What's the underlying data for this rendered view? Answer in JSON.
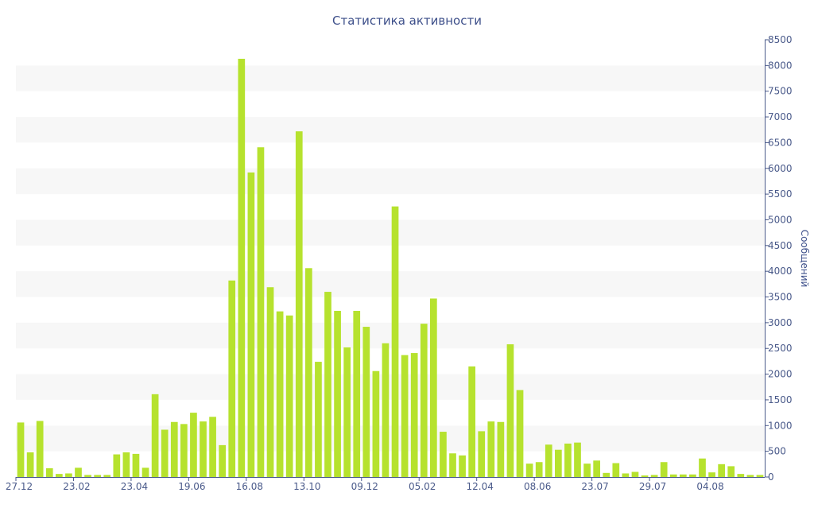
{
  "chart_data": {
    "type": "bar",
    "title": "Статистика активности",
    "xlabel": "",
    "ylabel": "Сообщений",
    "ylim": [
      0,
      8500
    ],
    "y_ticks": [
      0,
      500,
      1000,
      1500,
      2000,
      2500,
      3000,
      3500,
      4000,
      4500,
      5000,
      5500,
      6000,
      6500,
      7000,
      7500,
      8000,
      8500
    ],
    "y_axis_side": "right",
    "grid": "alternating horizontal bands",
    "legend": "none",
    "x_tick_labels": [
      {
        "index": 0,
        "label": "27.12"
      },
      {
        "index": 6,
        "label": "23.02"
      },
      {
        "index": 12,
        "label": "23.04"
      },
      {
        "index": 18,
        "label": "19.06"
      },
      {
        "index": 24,
        "label": "16.08"
      },
      {
        "index": 30,
        "label": "13.10"
      },
      {
        "index": 36,
        "label": "09.12"
      },
      {
        "index": 42,
        "label": "05.02"
      },
      {
        "index": 48,
        "label": "12.04"
      },
      {
        "index": 54,
        "label": "08.06"
      },
      {
        "index": 60,
        "label": "23.07"
      },
      {
        "index": 66,
        "label": "29.07"
      },
      {
        "index": 72,
        "label": "04.08"
      }
    ],
    "values": [
      1060,
      480,
      1090,
      170,
      60,
      70,
      180,
      40,
      40,
      40,
      440,
      480,
      450,
      180,
      1610,
      920,
      1070,
      1030,
      1250,
      1080,
      1170,
      620,
      3820,
      8130,
      5920,
      6410,
      3690,
      3220,
      3140,
      6720,
      4060,
      2240,
      3600,
      3230,
      2520,
      3230,
      2920,
      2060,
      2600,
      5260,
      2370,
      2410,
      2980,
      3470,
      880,
      460,
      420,
      2150,
      890,
      1080,
      1070,
      2580,
      1690,
      260,
      290,
      630,
      530,
      650,
      670,
      260,
      320,
      80,
      270,
      70,
      100,
      30,
      40,
      290,
      50,
      50,
      50,
      360,
      90,
      250,
      210,
      60,
      40,
      40
    ]
  },
  "colors": {
    "bar": "#b6e22e",
    "axis": "#4a5a8a",
    "title": "#3d4f8a",
    "band": "#f7f7f7"
  }
}
